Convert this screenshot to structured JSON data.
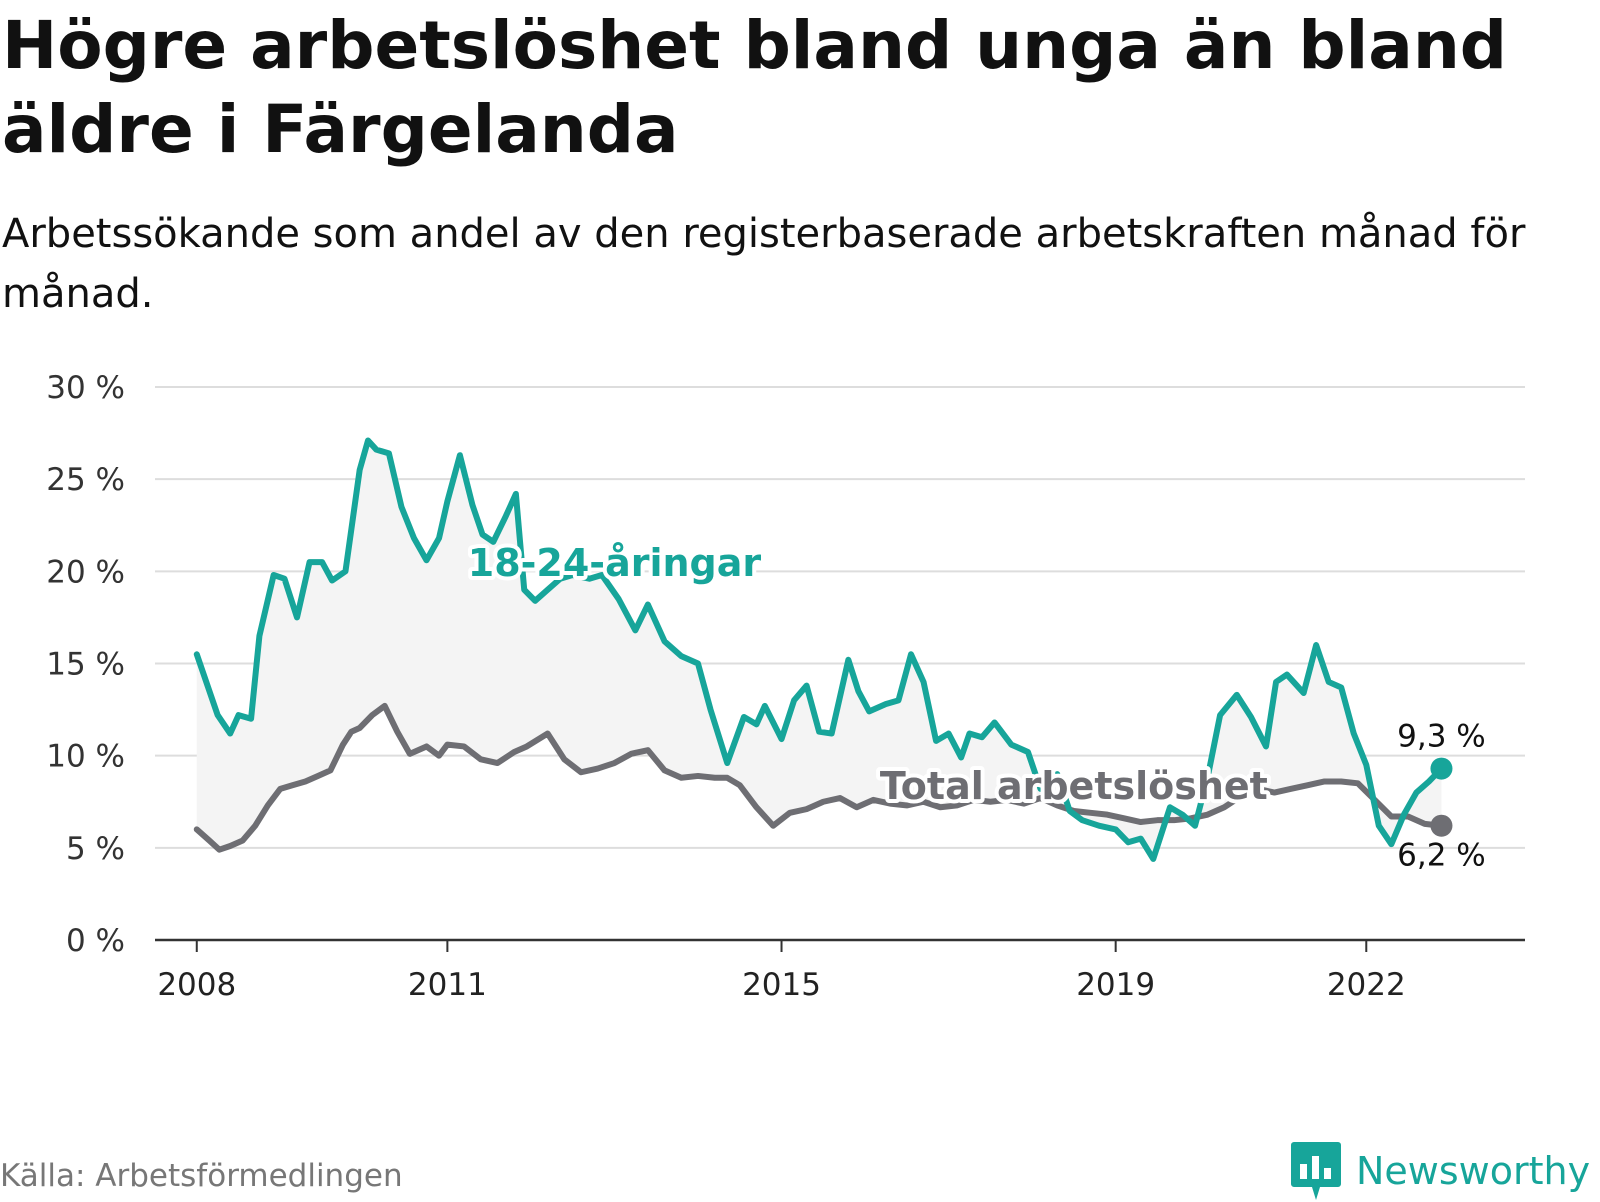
{
  "title": "Högre arbetslöshet bland unga än bland äldre i Färgelanda",
  "subtitle": "Arbetssökande som andel av den registerbaserade arbetskraften månad för månad.",
  "source": "Källa: Arbetsförmedlingen",
  "brand": "Newsworthy",
  "colors": {
    "youth": "#17a59a",
    "total": "#6e6e73",
    "band": "#f4f4f4",
    "grid": "#dddddd",
    "axis": "#333333"
  },
  "chart_data": {
    "type": "line",
    "title": "Högre arbetslöshet bland unga än bland äldre i Färgelanda",
    "xlabel": "",
    "ylabel": "",
    "ylim": [
      0,
      30
    ],
    "xlim": [
      2007.5,
      2023.9
    ],
    "y_ticks": [
      0,
      5,
      10,
      15,
      20,
      25,
      30
    ],
    "y_tick_labels": [
      "0 %",
      "5 %",
      "10 %",
      "15 %",
      "20 %",
      "25 %",
      "30 %"
    ],
    "x_ticks": [
      2008,
      2011,
      2015,
      2019,
      2022
    ],
    "x_tick_labels": [
      "2008",
      "2011",
      "2015",
      "2019",
      "2022"
    ],
    "grid": true,
    "series": [
      {
        "name": "18-24-åringar",
        "label": "18-24-åringar",
        "end_label": "9,3 %",
        "x": [
          2008.0,
          2008.25,
          2008.4,
          2008.5,
          2008.65,
          2008.75,
          2008.92,
          2009.05,
          2009.2,
          2009.35,
          2009.5,
          2009.62,
          2009.78,
          2009.95,
          2010.05,
          2010.15,
          2010.3,
          2010.45,
          2010.6,
          2010.75,
          2010.9,
          2011.0,
          2011.15,
          2011.3,
          2011.42,
          2011.55,
          2011.7,
          2011.82,
          2011.92,
          2012.05,
          2012.2,
          2012.35,
          2012.5,
          2012.7,
          2012.85,
          2013.05,
          2013.25,
          2013.4,
          2013.6,
          2013.8,
          2014.0,
          2014.15,
          2014.35,
          2014.55,
          2014.7,
          2014.8,
          2015.0,
          2015.15,
          2015.3,
          2015.45,
          2015.6,
          2015.8,
          2015.92,
          2016.05,
          2016.25,
          2016.4,
          2016.55,
          2016.7,
          2016.85,
          2017.0,
          2017.15,
          2017.25,
          2017.4,
          2017.55,
          2017.75,
          2017.95,
          2018.1,
          2018.3,
          2018.45,
          2018.6,
          2018.8,
          2019.0,
          2019.15,
          2019.3,
          2019.45,
          2019.65,
          2019.8,
          2019.95,
          2020.1,
          2020.25,
          2020.45,
          2020.62,
          2020.8,
          2020.92,
          2021.05,
          2021.25,
          2021.4,
          2021.55,
          2021.7,
          2021.85,
          2022.0,
          2022.15,
          2022.3,
          2022.45,
          2022.6,
          2022.75,
          2022.9
        ],
        "values": [
          15.5,
          12.2,
          11.2,
          12.2,
          12.0,
          16.5,
          19.8,
          19.6,
          17.5,
          20.5,
          20.5,
          19.5,
          20.0,
          25.5,
          27.1,
          26.6,
          26.4,
          23.5,
          21.8,
          20.6,
          21.8,
          23.8,
          26.3,
          23.6,
          22.0,
          21.6,
          23.0,
          24.2,
          19.0,
          18.4,
          19.0,
          19.6,
          19.8,
          19.6,
          19.8,
          18.5,
          16.8,
          18.2,
          16.2,
          15.4,
          15.0,
          12.5,
          9.6,
          12.1,
          11.7,
          12.7,
          10.9,
          13.0,
          13.8,
          11.3,
          11.2,
          15.2,
          13.5,
          12.4,
          12.8,
          13.0,
          15.5,
          14.0,
          10.8,
          11.2,
          9.9,
          11.2,
          11.0,
          11.8,
          10.6,
          10.2,
          8.2,
          9.0,
          7.0,
          6.5,
          6.2,
          6.0,
          5.3,
          5.5,
          4.4,
          7.2,
          6.8,
          6.2,
          8.8,
          12.2,
          13.3,
          12.1,
          10.5,
          14.0,
          14.4,
          13.4,
          16.0,
          14.0,
          13.7,
          11.2,
          9.5,
          6.2,
          5.2,
          6.8,
          8.0,
          8.6,
          9.3
        ]
      },
      {
        "name": "Total arbetslöshet",
        "label": "Total arbetslöshet",
        "end_label": "6,2 %",
        "x": [
          2008.0,
          2008.15,
          2008.27,
          2008.4,
          2008.55,
          2008.7,
          2008.85,
          2009.0,
          2009.15,
          2009.3,
          2009.45,
          2009.6,
          2009.75,
          2009.85,
          2009.95,
          2010.1,
          2010.25,
          2010.4,
          2010.55,
          2010.75,
          2010.9,
          2011.0,
          2011.2,
          2011.4,
          2011.6,
          2011.8,
          2011.95,
          2012.2,
          2012.4,
          2012.6,
          2012.8,
          2013.0,
          2013.2,
          2013.4,
          2013.6,
          2013.8,
          2014.0,
          2014.2,
          2014.35,
          2014.5,
          2014.7,
          2014.9,
          2015.1,
          2015.3,
          2015.5,
          2015.7,
          2015.9,
          2016.1,
          2016.3,
          2016.5,
          2016.7,
          2016.9,
          2017.1,
          2017.3,
          2017.5,
          2017.7,
          2017.9,
          2018.1,
          2018.3,
          2018.5,
          2018.7,
          2018.9,
          2019.1,
          2019.3,
          2019.5,
          2019.7,
          2019.9,
          2020.1,
          2020.3,
          2020.5,
          2020.7,
          2020.9,
          2021.1,
          2021.3,
          2021.5,
          2021.7,
          2021.9,
          2022.1,
          2022.3,
          2022.5,
          2022.7,
          2022.9
        ],
        "values": [
          6.0,
          5.4,
          4.9,
          5.1,
          5.4,
          6.2,
          7.3,
          8.2,
          8.4,
          8.6,
          8.9,
          9.2,
          10.6,
          11.3,
          11.5,
          12.2,
          12.7,
          11.3,
          10.1,
          10.5,
          10.0,
          10.6,
          10.5,
          9.8,
          9.6,
          10.2,
          10.5,
          11.2,
          9.8,
          9.1,
          9.3,
          9.6,
          10.1,
          10.3,
          9.2,
          8.8,
          8.9,
          8.8,
          8.8,
          8.4,
          7.2,
          6.2,
          6.9,
          7.1,
          7.5,
          7.7,
          7.2,
          7.6,
          7.4,
          7.3,
          7.5,
          7.2,
          7.3,
          7.6,
          7.5,
          7.6,
          7.4,
          7.7,
          7.3,
          7.0,
          6.9,
          6.8,
          6.6,
          6.4,
          6.5,
          6.5,
          6.6,
          6.8,
          7.2,
          7.8,
          8.2,
          8.0,
          8.2,
          8.4,
          8.6,
          8.6,
          8.5,
          7.6,
          6.7,
          6.7,
          6.3,
          6.2
        ]
      }
    ]
  }
}
